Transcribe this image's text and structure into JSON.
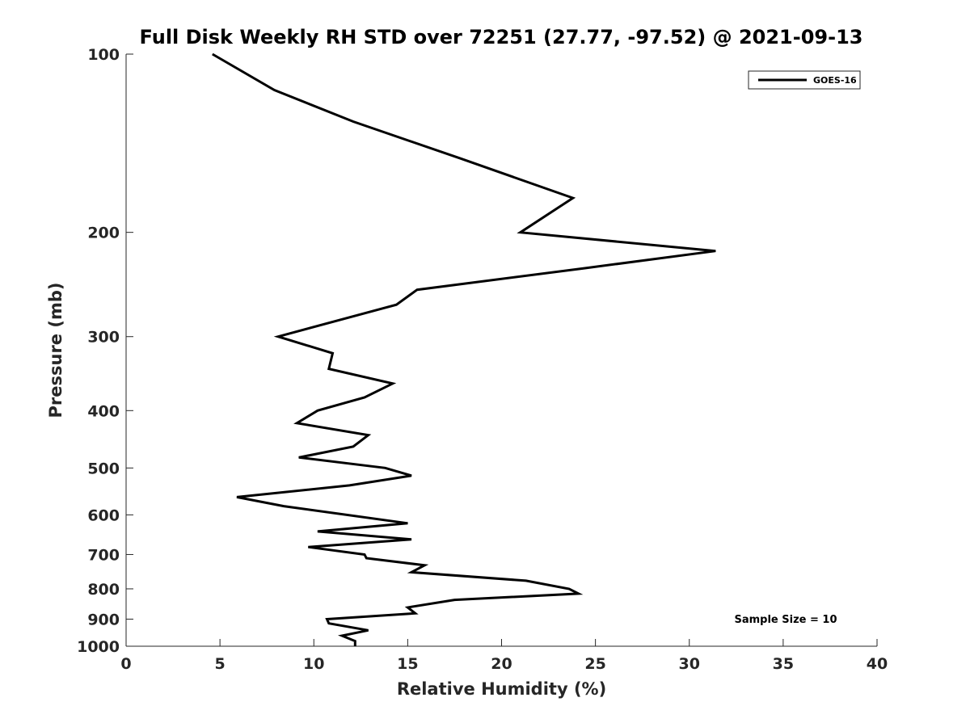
{
  "chart_data": {
    "type": "line",
    "title": "Full Disk Weekly RH STD over 72251 (27.77, -97.52) @ 2021-09-13",
    "xlabel": "Relative Humidity (%)",
    "ylabel": "Pressure (mb)",
    "xlim": [
      0,
      40
    ],
    "ylim": [
      100,
      1000
    ],
    "y_scale": "log",
    "y_direction": "reversed",
    "x_ticks": [
      0,
      5,
      10,
      15,
      20,
      25,
      30,
      35,
      40
    ],
    "y_ticks": [
      100,
      200,
      300,
      400,
      500,
      600,
      700,
      800,
      900,
      1000
    ],
    "grid": false,
    "legend_position": "top-right",
    "annotation": "Sample Size = 10",
    "series": [
      {
        "name": "GOES-16",
        "color": "#000000",
        "x": [
          4.6,
          7.9,
          12.1,
          17.8,
          23.8,
          21.0,
          31.4,
          24.4,
          15.5,
          14.4,
          8.1,
          11.0,
          10.8,
          14.2,
          12.7,
          10.2,
          9.1,
          12.9,
          12.1,
          9.2,
          13.8,
          15.2,
          11.9,
          5.9,
          8.4,
          15.0,
          10.2,
          15.2,
          9.7,
          12.7,
          12.8,
          15.9,
          15.2,
          21.3,
          23.6,
          24.1,
          17.5,
          15.0,
          15.4,
          10.7,
          10.8,
          12.9,
          11.5,
          12.2,
          12.2
        ],
        "y": [
          100,
          115,
          130,
          150,
          175,
          200,
          215,
          230,
          250,
          265,
          300,
          320,
          340,
          360,
          380,
          400,
          420,
          440,
          460,
          480,
          500,
          515,
          535,
          560,
          580,
          620,
          640,
          660,
          680,
          700,
          710,
          730,
          750,
          775,
          800,
          815,
          835,
          860,
          880,
          900,
          915,
          940,
          960,
          980,
          1000
        ]
      }
    ]
  }
}
